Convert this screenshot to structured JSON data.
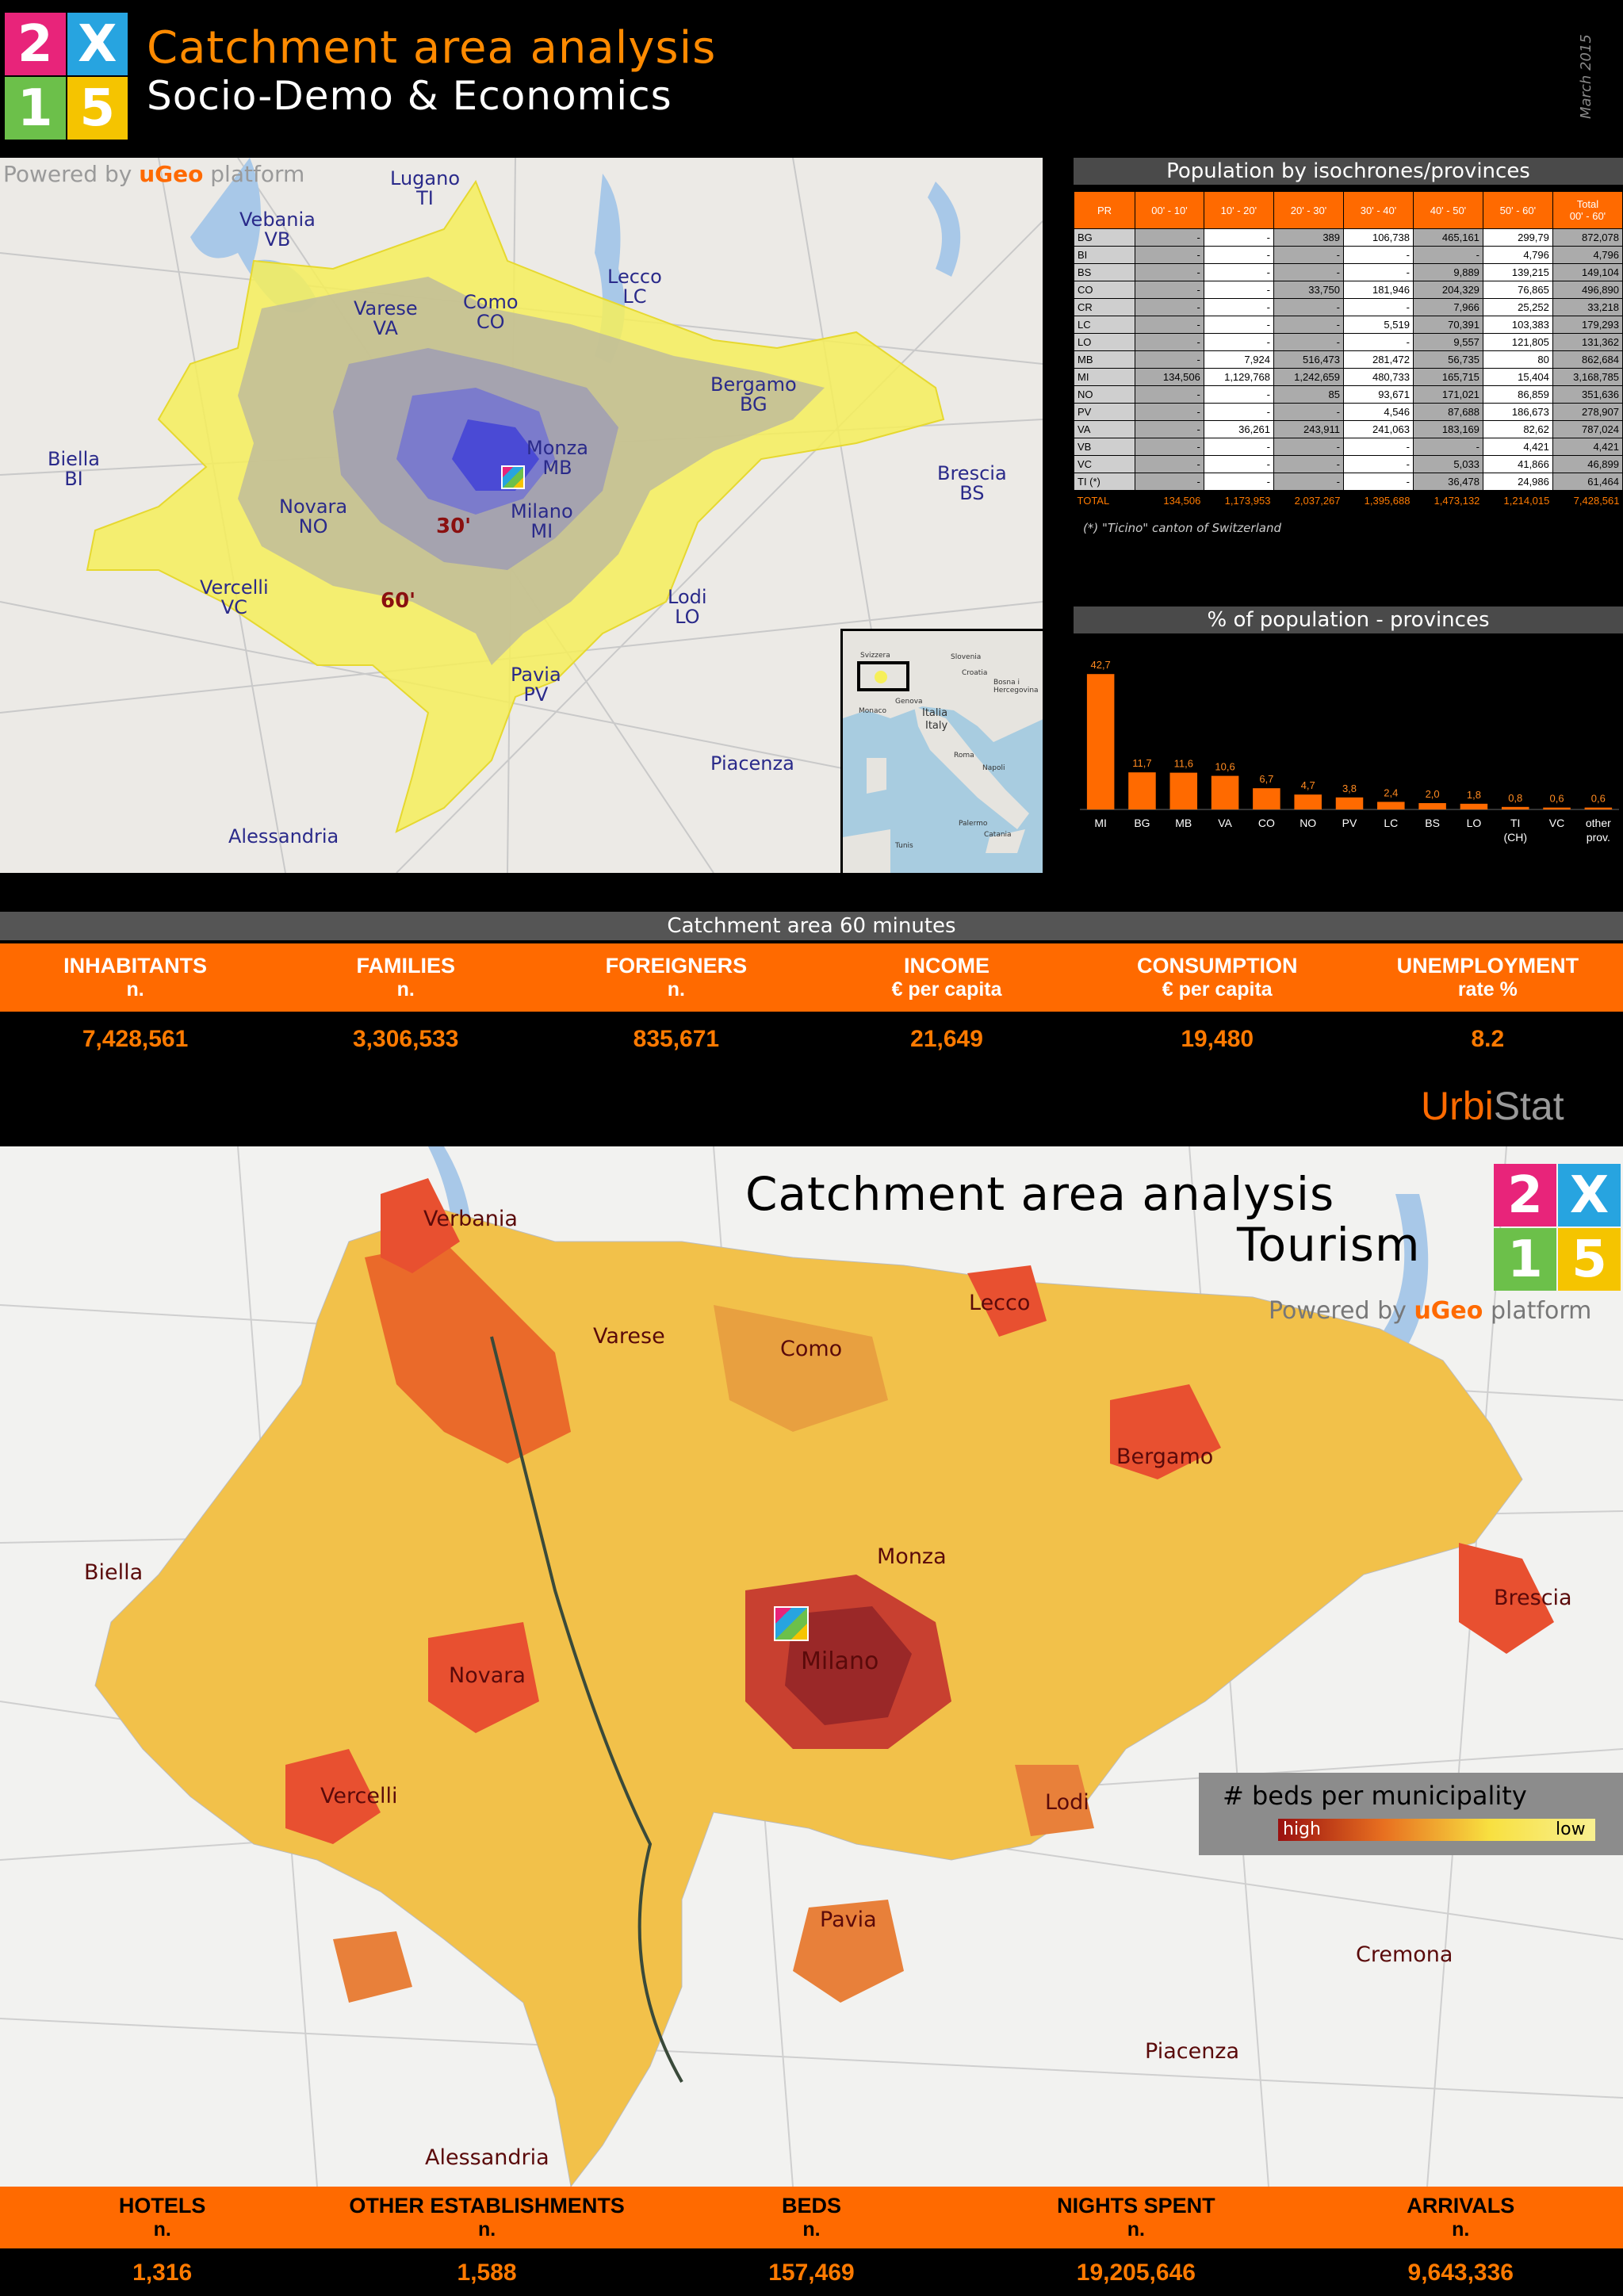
{
  "header": {
    "logo_glyphs": [
      "2",
      "X",
      "1",
      "5"
    ],
    "title": "Catchment area analysis",
    "subtitle": "Socio-Demo & Economics",
    "date": "March 2015"
  },
  "map1": {
    "powered": "Powered by",
    "brand": "uGeo",
    "platform": "platform",
    "labels": [
      {
        "id": "lugano",
        "text": "Lugano\nTI"
      },
      {
        "id": "vebania",
        "text": "Vebania\nVB"
      },
      {
        "id": "lecco",
        "text": "Lecco\nLC"
      },
      {
        "id": "varese",
        "text": "Varese\nVA"
      },
      {
        "id": "como",
        "text": "Como\nCO"
      },
      {
        "id": "bergamo",
        "text": "Bergamo\nBG"
      },
      {
        "id": "biella",
        "text": "Biella\nBI"
      },
      {
        "id": "monza",
        "text": "Monza\nMB"
      },
      {
        "id": "brescia",
        "text": "Brescia\nBS"
      },
      {
        "id": "novara",
        "text": "Novara\nNO"
      },
      {
        "id": "milano",
        "text": "Milano\nMI"
      },
      {
        "id": "vercelli",
        "text": "Vercelli\nVC"
      },
      {
        "id": "lodi",
        "text": "Lodi\nLO"
      },
      {
        "id": "pavia",
        "text": "Pavia\nPV"
      },
      {
        "id": "piacenza",
        "text": "Piacenza"
      },
      {
        "id": "alessandria",
        "text": "Alessandria"
      }
    ],
    "isochrone_30": "30'",
    "isochrone_60": "60'"
  },
  "inset": {
    "labels": [
      "Svizzera",
      "Slovenia",
      "Croatia",
      "Bosna i Hercegovina",
      "Italia",
      "Italy",
      "Monaco",
      "Genova",
      "Roma",
      "Napoli",
      "Palermo",
      "Catania",
      "Tunis"
    ]
  },
  "iso_table": {
    "title": "Population by isochrones/provinces",
    "headers": [
      "PR",
      "00' - 10'",
      "10' - 20'",
      "20' - 30'",
      "30' - 40'",
      "40' - 50'",
      "50' - 60'",
      "Total\n00' - 60'"
    ],
    "rows": [
      [
        "BG",
        "-",
        "-",
        "389",
        "106,738",
        "465,161",
        "299,79",
        "872,078"
      ],
      [
        "BI",
        "-",
        "-",
        "-",
        "-",
        "-",
        "4,796",
        "4,796"
      ],
      [
        "BS",
        "-",
        "-",
        "-",
        "-",
        "9,889",
        "139,215",
        "149,104"
      ],
      [
        "CO",
        "-",
        "-",
        "33,750",
        "181,946",
        "204,329",
        "76,865",
        "496,890"
      ],
      [
        "CR",
        "-",
        "-",
        "-",
        "-",
        "7,966",
        "25,252",
        "33,218"
      ],
      [
        "LC",
        "-",
        "-",
        "-",
        "5,519",
        "70,391",
        "103,383",
        "179,293"
      ],
      [
        "LO",
        "-",
        "-",
        "-",
        "-",
        "9,557",
        "121,805",
        "131,362"
      ],
      [
        "MB",
        "-",
        "7,924",
        "516,473",
        "281,472",
        "56,735",
        "80",
        "862,684"
      ],
      [
        "MI",
        "134,506",
        "1,129,768",
        "1,242,659",
        "480,733",
        "165,715",
        "15,404",
        "3,168,785"
      ],
      [
        "NO",
        "-",
        "-",
        "85",
        "93,671",
        "171,021",
        "86,859",
        "351,636"
      ],
      [
        "PV",
        "-",
        "-",
        "-",
        "4,546",
        "87,688",
        "186,673",
        "278,907"
      ],
      [
        "VA",
        "-",
        "36,261",
        "243,911",
        "241,063",
        "183,169",
        "82,62",
        "787,024"
      ],
      [
        "VB",
        "-",
        "-",
        "-",
        "-",
        "-",
        "4,421",
        "4,421"
      ],
      [
        "VC",
        "-",
        "-",
        "-",
        "-",
        "5,033",
        "41,866",
        "46,899"
      ],
      [
        "TI (*)",
        "-",
        "-",
        "-",
        "-",
        "36,478",
        "24,986",
        "61,464"
      ]
    ],
    "total": [
      "TOTAL",
      "134,506",
      "1,173,953",
      "2,037,267",
      "1,395,688",
      "1,473,132",
      "1,214,015",
      "7,428,561"
    ],
    "footnote": "(*) \"Ticino\" canton of Switzerland"
  },
  "chart_data": {
    "type": "bar",
    "title": "% of population - provinces",
    "categories": [
      "MI",
      "BG",
      "MB",
      "VA",
      "CO",
      "NO",
      "PV",
      "LC",
      "BS",
      "LO",
      "TI\n(CH)",
      "VC",
      "other\nprov."
    ],
    "values": [
      42.7,
      11.7,
      11.6,
      10.6,
      6.7,
      4.7,
      3.8,
      2.4,
      2.0,
      1.8,
      0.8,
      0.6,
      0.6
    ],
    "value_labels": [
      "42,7",
      "11,7",
      "11,6",
      "10,6",
      "6,7",
      "4,7",
      "3,8",
      "2,4",
      "2,0",
      "1,8",
      "0,8",
      "0,6",
      "0,6"
    ],
    "ylim": [
      0,
      45
    ],
    "color": "#ff6a00"
  },
  "catchment": {
    "title": "Catchment area 60 minutes",
    "metrics": [
      {
        "label": "INHABITANTS",
        "unit": "n.",
        "value": "7,428,561"
      },
      {
        "label": "FAMILIES",
        "unit": "n.",
        "value": "3,306,533"
      },
      {
        "label": "FOREIGNERS",
        "unit": "n.",
        "value": "835,671"
      },
      {
        "label": "INCOME",
        "unit": "€ per capita",
        "value": "21,649"
      },
      {
        "label": "CONSUMPTION",
        "unit": "€ per capita",
        "value": "19,480"
      },
      {
        "label": "UNEMPLOYMENT",
        "unit": "rate %",
        "value": "8.2"
      }
    ]
  },
  "brand": {
    "urbi": "Urbi",
    "stat": "Stat"
  },
  "map2": {
    "title": "Catchment area analysis",
    "subtitle": "Tourism",
    "powered": "Powered by",
    "brand": "uGeo",
    "platform": "platform",
    "labels": [
      "Verbania",
      "Varese",
      "Como",
      "Lecco",
      "Bergamo",
      "Biella",
      "Monza",
      "Brescia",
      "Milano",
      "Novara",
      "Vercelli",
      "Lodi",
      "Pavia",
      "Cremona",
      "Piacenza",
      "Alessandria"
    ],
    "legend_title": "# beds per municipality",
    "legend_high": "high",
    "legend_low": "low"
  },
  "tourism": {
    "metrics": [
      {
        "label": "HOTELS",
        "unit": "n.",
        "value": "1,316"
      },
      {
        "label": "OTHER ESTABLISHMENTS",
        "unit": "n.",
        "value": "1,588"
      },
      {
        "label": "BEDS",
        "unit": "n.",
        "value": "157,469"
      },
      {
        "label": "NIGHTS SPENT",
        "unit": "n.",
        "value": "19,205,646"
      },
      {
        "label": "ARRIVALS",
        "unit": "n.",
        "value": "9,643,336"
      }
    ]
  },
  "colors": {
    "accent": "#ff7a00",
    "table_header": "#ff6a00",
    "bg": "#000000"
  }
}
